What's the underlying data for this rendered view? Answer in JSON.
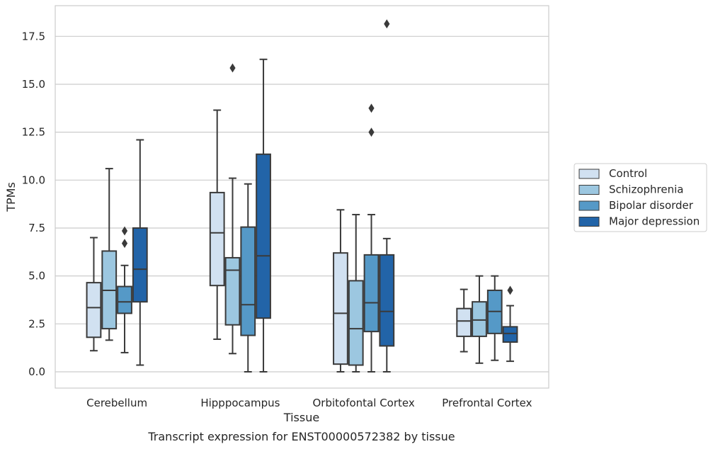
{
  "chart_data": {
    "type": "box",
    "xlabel": "Tissue",
    "ylabel": "TPMs",
    "caption": "Transcript expression for ENST00000572382 by tissue",
    "categories": [
      "Cerebellum",
      "Hipppocampus",
      "Orbitofontal Cortex",
      "Prefrontal Cortex"
    ],
    "ylim": [
      -0.85,
      19.1
    ],
    "yticks": [
      0.0,
      2.5,
      5.0,
      7.5,
      10.0,
      12.5,
      15.0,
      17.5
    ],
    "ytick_labels": [
      "0.0",
      "2.5",
      "5.0",
      "7.5",
      "10.0",
      "12.5",
      "15.0",
      "17.5"
    ],
    "grid": true,
    "legend_position": "right",
    "series": [
      {
        "name": "Control",
        "color": "#d1e1f1",
        "boxes": [
          {
            "whislo": 1.1,
            "q1": 1.8,
            "med": 3.35,
            "q3": 4.65,
            "whishi": 7.0,
            "fliers": []
          },
          {
            "whislo": 1.7,
            "q1": 4.5,
            "med": 7.25,
            "q3": 9.35,
            "whishi": 13.65,
            "fliers": []
          },
          {
            "whislo": 0.0,
            "q1": 0.4,
            "med": 3.05,
            "q3": 6.2,
            "whishi": 8.45,
            "fliers": []
          },
          {
            "whislo": 1.05,
            "q1": 1.85,
            "med": 2.65,
            "q3": 3.3,
            "whishi": 4.3,
            "fliers": []
          }
        ]
      },
      {
        "name": "Schizophrenia",
        "color": "#9cc7e0",
        "boxes": [
          {
            "whislo": 1.65,
            "q1": 2.25,
            "med": 4.25,
            "q3": 6.3,
            "whishi": 10.6,
            "fliers": []
          },
          {
            "whislo": 0.95,
            "q1": 2.45,
            "med": 5.3,
            "q3": 5.95,
            "whishi": 10.1,
            "fliers": [
              15.85
            ]
          },
          {
            "whislo": 0.0,
            "q1": 0.35,
            "med": 2.25,
            "q3": 4.75,
            "whishi": 8.2,
            "fliers": []
          },
          {
            "whislo": 0.45,
            "q1": 1.85,
            "med": 2.7,
            "q3": 3.65,
            "whishi": 5.0,
            "fliers": []
          }
        ]
      },
      {
        "name": "Bipolar disorder",
        "color": "#5599c7",
        "boxes": [
          {
            "whislo": 1.0,
            "q1": 3.05,
            "med": 3.65,
            "q3": 4.45,
            "whishi": 5.55,
            "fliers": [
              6.7,
              7.35
            ]
          },
          {
            "whislo": 0.0,
            "q1": 1.9,
            "med": 3.5,
            "q3": 7.55,
            "whishi": 9.8,
            "fliers": []
          },
          {
            "whislo": 0.0,
            "q1": 2.1,
            "med": 3.6,
            "q3": 6.1,
            "whishi": 8.2,
            "fliers": [
              12.5,
              13.75
            ]
          },
          {
            "whislo": 0.6,
            "q1": 2.0,
            "med": 3.15,
            "q3": 4.25,
            "whishi": 5.0,
            "fliers": []
          }
        ]
      },
      {
        "name": "Major depression",
        "color": "#2264a8",
        "boxes": [
          {
            "whislo": 0.35,
            "q1": 3.65,
            "med": 5.35,
            "q3": 7.5,
            "whishi": 12.1,
            "fliers": []
          },
          {
            "whislo": 0.0,
            "q1": 2.8,
            "med": 6.05,
            "q3": 11.35,
            "whishi": 16.3,
            "fliers": []
          },
          {
            "whislo": 0.0,
            "q1": 1.35,
            "med": 3.15,
            "q3": 6.1,
            "whishi": 6.95,
            "fliers": [
              18.15
            ]
          },
          {
            "whislo": 0.55,
            "q1": 1.55,
            "med": 2.0,
            "q3": 2.35,
            "whishi": 3.45,
            "fliers": [
              4.25
            ]
          }
        ]
      }
    ]
  },
  "style": {
    "grid_color": "#cccccc",
    "frame_color": "#cccccc",
    "line_color": "#3a3a3a",
    "text_color": "#262626"
  }
}
